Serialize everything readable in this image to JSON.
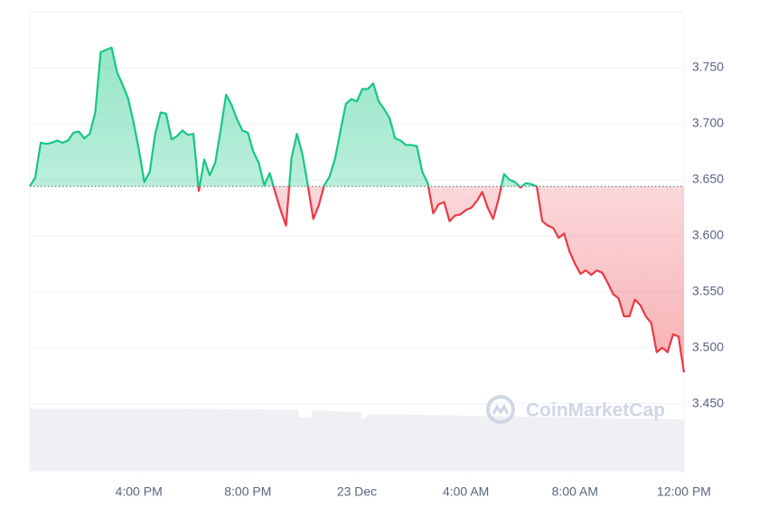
{
  "chart_data": {
    "type": "line",
    "watermark": "CoinMarketCap",
    "x": [
      0,
      0.2,
      0.4,
      0.6,
      0.8,
      1,
      1.2,
      1.4,
      1.6,
      1.8,
      2,
      2.2,
      2.4,
      2.6,
      2.8,
      3,
      3.2,
      3.4,
      3.6,
      3.8,
      4,
      4.2,
      4.4,
      4.6,
      4.8,
      5,
      5.2,
      5.4,
      5.6,
      5.8,
      6,
      6.2,
      6.4,
      6.6,
      6.8,
      7,
      7.2,
      7.4,
      7.6,
      7.8,
      8,
      8.2,
      8.4,
      8.6,
      8.8,
      9,
      9.2,
      9.4,
      9.6,
      9.8,
      10,
      10.2,
      10.4,
      10.6,
      10.8,
      11,
      11.2,
      11.4,
      11.6,
      11.8,
      12,
      12.2,
      12.4,
      12.6,
      12.8,
      13,
      13.2,
      13.4,
      13.6,
      13.8,
      14,
      14.2,
      14.4,
      14.6,
      14.8,
      15,
      15.2,
      15.4,
      15.6,
      15.8,
      16,
      16.2,
      16.4,
      16.6,
      16.8,
      17,
      17.2,
      17.4,
      17.6,
      17.8,
      18,
      18.2,
      18.4,
      18.6,
      18.8,
      19,
      19.2,
      19.4,
      19.6,
      19.8,
      20,
      20.2,
      20.4,
      20.6,
      20.8,
      21,
      21.2,
      21.4,
      21.6,
      21.8,
      22,
      22.2,
      22.4,
      22.6,
      22.8,
      23,
      23.2,
      23.4,
      23.6,
      23.8,
      24
    ],
    "series": [
      {
        "color_up": "#16c784",
        "color_down": "#ea3943",
        "values": [
          3.644,
          3.652,
          3.683,
          3.682,
          3.683,
          3.685,
          3.683,
          3.685,
          3.692,
          3.693,
          3.687,
          3.691,
          3.71,
          3.764,
          3.766,
          3.768,
          3.746,
          3.735,
          3.723,
          3.702,
          3.677,
          3.648,
          3.657,
          3.691,
          3.71,
          3.709,
          3.686,
          3.689,
          3.694,
          3.69,
          3.691,
          3.64,
          3.668,
          3.654,
          3.665,
          3.694,
          3.726,
          3.717,
          3.704,
          3.694,
          3.692,
          3.675,
          3.665,
          3.645,
          3.656,
          3.639,
          3.623,
          3.609,
          3.669,
          3.691,
          3.673,
          3.645,
          3.615,
          3.627,
          3.645,
          3.653,
          3.669,
          3.694,
          3.718,
          3.722,
          3.72,
          3.731,
          3.731,
          3.736,
          3.72,
          3.713,
          3.705,
          3.687,
          3.685,
          3.681,
          3.681,
          3.68,
          3.657,
          3.647,
          3.62,
          3.628,
          3.63,
          3.613,
          3.618,
          3.619,
          3.623,
          3.625,
          3.631,
          3.639,
          3.625,
          3.615,
          3.633,
          3.655,
          3.65,
          3.648,
          3.643,
          3.647,
          3.646,
          3.644,
          3.613,
          3.609,
          3.607,
          3.598,
          3.602,
          3.586,
          3.575,
          3.566,
          3.569,
          3.565,
          3.569,
          3.567,
          3.558,
          3.548,
          3.544,
          3.528,
          3.528,
          3.543,
          3.538,
          3.528,
          3.522,
          3.496,
          3.5,
          3.496,
          3.512,
          3.51,
          3.478
        ]
      }
    ],
    "baseline": 3.644,
    "xlim": [
      0,
      24
    ],
    "xticks": [
      {
        "value": 4,
        "label": "4:00 PM"
      },
      {
        "value": 8,
        "label": "8:00 PM"
      },
      {
        "value": 12,
        "label": "23 Dec"
      },
      {
        "value": 16,
        "label": "4:00 AM"
      },
      {
        "value": 20,
        "label": "8:00 AM"
      },
      {
        "value": 24,
        "label": "12:00 PM"
      }
    ],
    "ylim": [
      3.39,
      3.8
    ],
    "yticks": [
      {
        "value": 3.45,
        "label": "3.450"
      },
      {
        "value": 3.5,
        "label": "3.500"
      },
      {
        "value": 3.55,
        "label": "3.550"
      },
      {
        "value": 3.6,
        "label": "3.600"
      },
      {
        "value": 3.65,
        "label": "3.650"
      },
      {
        "value": 3.7,
        "label": "3.700"
      },
      {
        "value": 3.75,
        "label": "3.750"
      }
    ],
    "grid": true
  }
}
